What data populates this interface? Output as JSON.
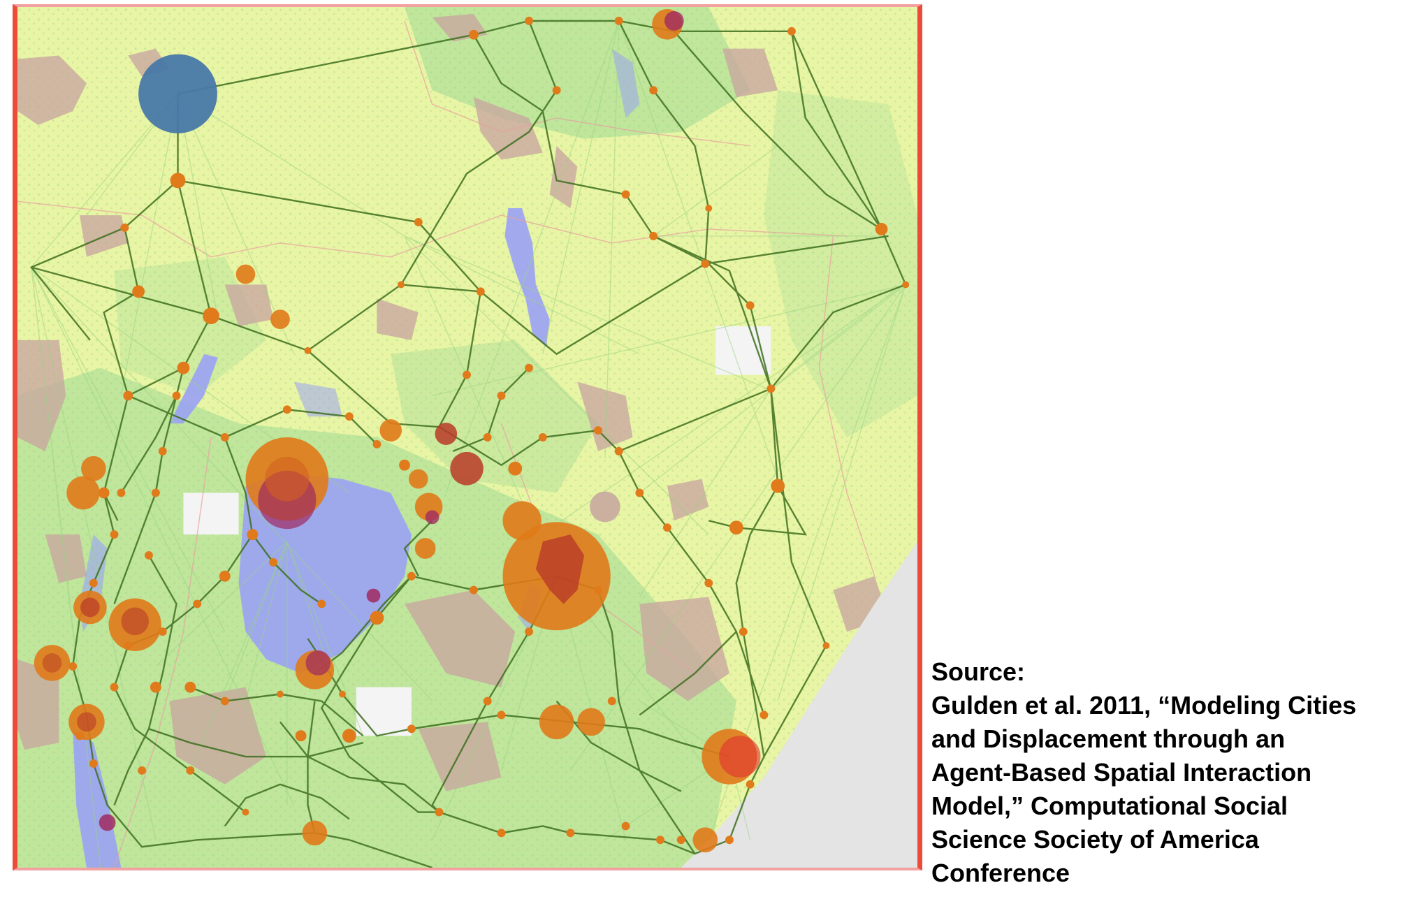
{
  "colors": {
    "frame_border": "#ee4a3a",
    "land": "#e8f5a4",
    "land_green": "#b8e39a",
    "urban_patch": "#c8a8a0",
    "water": "#9aa2f5",
    "sea": "#e4e4e4",
    "road": "#3c6e1e",
    "interaction_line": "#9bd483",
    "city": "#e07a1a",
    "city_core": "#b83a28",
    "capital": "#4878a8"
  },
  "caption": {
    "lines": [
      "Source:",
      "Gulden et al. 2011, “Modeling Cities",
      "and Displacement through an",
      "Agent-Based Spatial Interaction",
      "Model,” Computational Social",
      "Science Society of America",
      "Conference"
    ]
  }
}
